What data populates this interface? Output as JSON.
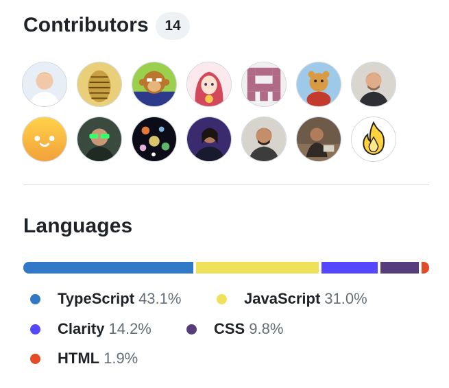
{
  "contributors": {
    "title": "Contributors",
    "count": "14",
    "avatar_icons": [
      "person-avatar-icon",
      "pixel-patterned-avatar-icon",
      "monkey-cartoon-avatar-icon",
      "anime-character-avatar-icon",
      "pixel-identicon-avatar-icon",
      "teddy-bear-avatar-icon",
      "person-avatar-icon",
      "smiley-face-avatar-icon",
      "person-green-glasses-avatar-icon",
      "space-planets-avatar-icon",
      "person-purple-avatar-icon",
      "person-avatar-icon",
      "person-avatar-icon",
      "flame-avatar-icon"
    ]
  },
  "languages": {
    "title": "Languages",
    "items": [
      {
        "name": "TypeScript",
        "percent": "43.1%",
        "value": 43.1,
        "color": "#3178c6"
      },
      {
        "name": "JavaScript",
        "percent": "31.0%",
        "value": 31.0,
        "color": "#f1e05a"
      },
      {
        "name": "Clarity",
        "percent": "14.2%",
        "value": 14.2,
        "color": "#5546ff"
      },
      {
        "name": "CSS",
        "percent": "9.8%",
        "value": 9.8,
        "color": "#563d7c"
      },
      {
        "name": "HTML",
        "percent": "1.9%",
        "value": 1.9,
        "color": "#e34c26"
      }
    ]
  }
}
